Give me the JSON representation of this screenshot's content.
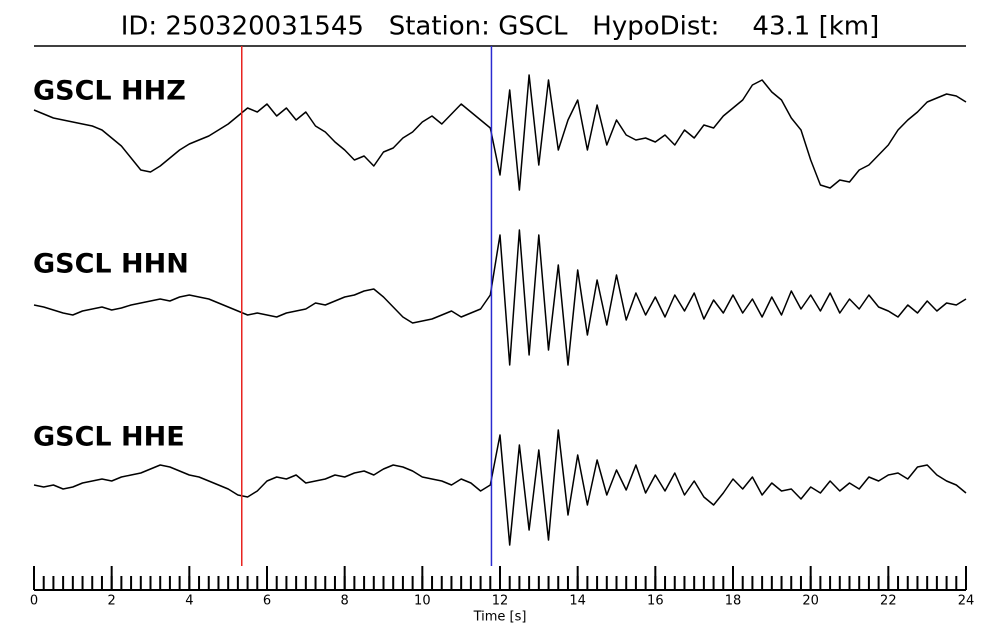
{
  "chart_data": {
    "type": "seismogram",
    "title": "ID: 250320031545   Station: GSCL   HypoDist:    43.1 [km]",
    "xlabel": "Time [s]",
    "xlim": [
      0,
      24
    ],
    "xticks": [
      0,
      2,
      4,
      6,
      8,
      10,
      12,
      14,
      16,
      18,
      20,
      22,
      24
    ],
    "xminorticks": [
      0,
      0.25,
      0.5,
      0.75,
      1,
      1.25,
      1.5,
      1.75,
      2,
      2.25,
      2.5,
      2.75,
      3,
      3.25,
      3.5,
      3.75,
      4,
      4.25,
      4.5,
      4.75,
      5,
      5.25,
      5.5,
      5.75,
      6,
      6.25,
      6.5,
      6.75,
      7,
      7.25,
      7.5,
      7.75,
      8,
      8.25,
      8.5,
      8.75,
      9,
      9.25,
      9.5,
      9.75,
      10,
      10.25,
      10.5,
      10.75,
      11,
      11.25,
      11.5,
      11.75,
      12,
      12.25,
      12.5,
      12.75,
      13,
      13.25,
      13.5,
      13.75,
      14,
      14.25,
      14.5,
      14.75,
      15,
      15.25,
      15.5,
      15.75,
      16,
      16.25,
      16.5,
      16.75,
      17,
      17.25,
      17.5,
      17.75,
      18,
      18.25,
      18.5,
      18.75,
      19,
      19.25,
      19.5,
      19.75,
      20,
      20.25,
      20.5,
      20.75,
      21,
      21.25,
      21.5,
      21.75,
      22,
      22.25,
      22.5,
      22.75,
      23,
      23.25,
      23.5,
      23.75,
      24
    ],
    "x": [
      0,
      0.25,
      0.5,
      0.75,
      1,
      1.25,
      1.5,
      1.75,
      2,
      2.25,
      2.5,
      2.75,
      3,
      3.25,
      3.5,
      3.75,
      4,
      4.25,
      4.5,
      4.75,
      5,
      5.25,
      5.5,
      5.75,
      6,
      6.25,
      6.5,
      6.75,
      7,
      7.25,
      7.5,
      7.75,
      8,
      8.25,
      8.5,
      8.75,
      9,
      9.25,
      9.5,
      9.75,
      10,
      10.25,
      10.5,
      10.75,
      11,
      11.25,
      11.5,
      11.75,
      12,
      12.25,
      12.5,
      12.75,
      13,
      13.25,
      13.5,
      13.75,
      14,
      14.25,
      14.5,
      14.75,
      15,
      15.25,
      15.5,
      15.75,
      16,
      16.25,
      16.5,
      16.75,
      17,
      17.25,
      17.5,
      17.75,
      18,
      18.25,
      18.5,
      18.75,
      19,
      19.25,
      19.5,
      19.75,
      20,
      20.25,
      20.5,
      20.75,
      21,
      21.25,
      21.5,
      21.75,
      22,
      22.25,
      22.5,
      22.75,
      23,
      23.25,
      23.5,
      23.75,
      24
    ],
    "picks": [
      {
        "value": 5.35,
        "color": "#e8231f"
      },
      {
        "value": 11.78,
        "color": "#2b2bd0"
      }
    ],
    "label_color": "#4a9a0a",
    "series": [
      {
        "name": "GSCL HHZ",
        "color": "#000000",
        "values": [
          20,
          16,
          12,
          10,
          8,
          6,
          4,
          0,
          -8,
          -16,
          -28,
          -40,
          -42,
          -36,
          -28,
          -20,
          -14,
          -10,
          -6,
          0,
          6,
          14,
          22,
          18,
          26,
          14,
          22,
          10,
          18,
          4,
          -2,
          -12,
          -20,
          -30,
          -26,
          -36,
          -22,
          -18,
          -8,
          -2,
          8,
          14,
          6,
          16,
          26,
          18,
          10,
          2,
          -45,
          40,
          -60,
          55,
          -35,
          50,
          -20,
          10,
          30,
          -20,
          25,
          -15,
          10,
          -5,
          -10,
          -8,
          -12,
          -5,
          -15,
          0,
          -8,
          5,
          2,
          14,
          22,
          30,
          45,
          50,
          38,
          30,
          12,
          0,
          -30,
          -55,
          -58,
          -50,
          -52,
          -40,
          -35,
          -25,
          -15,
          0,
          10,
          18,
          28,
          32,
          36,
          34,
          28
        ]
      },
      {
        "name": "GSCL HHN",
        "color": "#000000",
        "values": [
          0,
          -2,
          -5,
          -8,
          -10,
          -6,
          -4,
          -2,
          -5,
          -3,
          0,
          2,
          4,
          6,
          4,
          8,
          10,
          8,
          6,
          2,
          -2,
          -6,
          -10,
          -8,
          -10,
          -12,
          -8,
          -6,
          -4,
          2,
          0,
          4,
          8,
          10,
          14,
          16,
          8,
          -2,
          -12,
          -18,
          -16,
          -14,
          -10,
          -6,
          -12,
          -8,
          -4,
          10,
          70,
          -60,
          75,
          -50,
          70,
          -45,
          40,
          -60,
          35,
          -30,
          25,
          -20,
          30,
          -15,
          12,
          -10,
          8,
          -12,
          10,
          -6,
          12,
          -14,
          5,
          -8,
          10,
          -8,
          6,
          -12,
          8,
          -10,
          14,
          -4,
          10,
          -6,
          12,
          -8,
          6,
          -4,
          10,
          -2,
          -6,
          -12,
          0,
          -8,
          4,
          -6,
          2,
          0,
          6
        ]
      },
      {
        "name": "GSCL HHE",
        "color": "#000000",
        "values": [
          0,
          -2,
          0,
          -4,
          -2,
          2,
          4,
          6,
          4,
          8,
          10,
          12,
          16,
          20,
          18,
          14,
          10,
          8,
          4,
          0,
          -4,
          -10,
          -12,
          -6,
          4,
          8,
          6,
          10,
          2,
          4,
          6,
          10,
          8,
          12,
          14,
          10,
          16,
          20,
          18,
          14,
          8,
          6,
          4,
          0,
          6,
          2,
          -6,
          0,
          50,
          -60,
          40,
          -45,
          35,
          -55,
          55,
          -30,
          30,
          -20,
          25,
          -10,
          15,
          -5,
          20,
          -8,
          10,
          -6,
          12,
          -10,
          4,
          -12,
          -20,
          -8,
          6,
          -4,
          8,
          -10,
          2,
          -6,
          -4,
          -14,
          -2,
          -8,
          4,
          -6,
          2,
          -4,
          8,
          4,
          10,
          12,
          6,
          18,
          20,
          10,
          4,
          0,
          -8
        ]
      }
    ]
  }
}
